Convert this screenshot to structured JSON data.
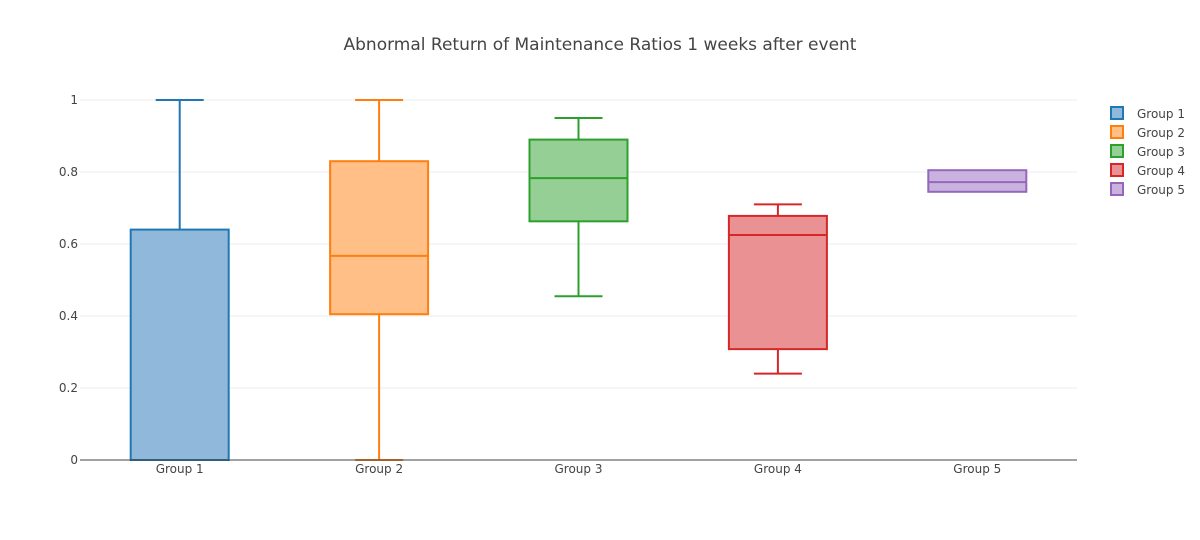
{
  "chart_data": {
    "type": "box",
    "title": "Abnormal Return of Maintenance Ratios 1 weeks after event",
    "xlabel": "",
    "ylabel": "",
    "ylim": [
      0,
      1
    ],
    "yticks": [
      0,
      0.2,
      0.4,
      0.6,
      0.8,
      1
    ],
    "ytick_labels": [
      "0",
      "0.2",
      "0.4",
      "0.6",
      "0.8",
      "1"
    ],
    "grid": true,
    "legend_position": "top-right",
    "categories": [
      "Group 1",
      "Group 2",
      "Group 3",
      "Group 4",
      "Group 5"
    ],
    "series": [
      {
        "name": "Group 1",
        "color": "#1f77b4",
        "fill": "#8fb8da",
        "min": 0,
        "q1": 0,
        "median": 0,
        "q3": 0.64,
        "max": 1
      },
      {
        "name": "Group 2",
        "color": "#ff7f0e",
        "fill": "#ffbf86",
        "min": 0,
        "q1": 0.405,
        "median": 0.567,
        "q3": 0.83,
        "max": 1
      },
      {
        "name": "Group 3",
        "color": "#2ca02c",
        "fill": "#95cf95",
        "min": 0.455,
        "q1": 0.663,
        "median": 0.783,
        "q3": 0.89,
        "max": 0.95
      },
      {
        "name": "Group 4",
        "color": "#d62728",
        "fill": "#ea9293",
        "min": 0.24,
        "q1": 0.308,
        "median": 0.625,
        "q3": 0.678,
        "max": 0.71
      },
      {
        "name": "Group 5",
        "color": "#9467bd",
        "fill": "#c9b3de",
        "min": 0.745,
        "q1": 0.745,
        "median": 0.772,
        "q3": 0.805,
        "max": 0.805
      }
    ]
  }
}
